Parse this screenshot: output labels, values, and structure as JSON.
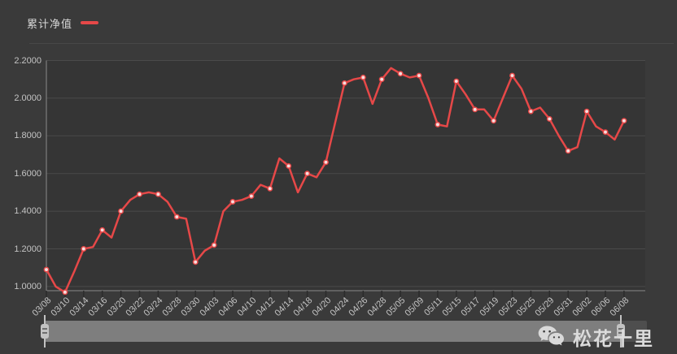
{
  "legend": {
    "label": "累计净值"
  },
  "watermark": {
    "text": "松花十里",
    "icon": "wechat-icon"
  },
  "colors": {
    "background": "#3a3a3a",
    "plot_background": "#353535",
    "grid_line": "#4a4a4a",
    "axis_line": "#8a8a8a",
    "axis_tick": "#2b2b2b",
    "axis_text": "#c4c4c4",
    "series_line": "#e64848",
    "point_fill": "#f6dede",
    "datazoom_selected": "#7e7e7e",
    "datazoom_unselected": "#4e4e4e",
    "datazoom_handle": "#c2c2c2",
    "watermark_text": "#dcdcdc"
  },
  "chart_data": {
    "type": "line",
    "title": "",
    "legend_entries": [
      "累计净值"
    ],
    "legend_position": "top-left",
    "grid": "horizontal-only",
    "xlabel": "",
    "ylabel": "",
    "x_tick_labels": [
      "03/08",
      "03/10",
      "03/14",
      "03/16",
      "03/20",
      "03/22",
      "03/24",
      "03/28",
      "03/30",
      "04/03",
      "04/06",
      "04/10",
      "04/12",
      "04/14",
      "04/18",
      "04/20",
      "04/24",
      "04/26",
      "04/28",
      "05/05",
      "05/09",
      "05/11",
      "05/15",
      "05/17",
      "05/19",
      "05/23",
      "05/25",
      "05/29",
      "05/31",
      "06/02",
      "06/06",
      "06/08"
    ],
    "points_per_tick": 2,
    "y_tick_labels": [
      "1.0000",
      "1.2000",
      "1.4000",
      "1.6000",
      "1.8000",
      "2.0000",
      "2.2000"
    ],
    "ylim": [
      1.0,
      2.2
    ],
    "series": [
      {
        "name": "累计净值",
        "values": [
          1.09,
          1.0,
          0.97,
          1.08,
          1.2,
          1.21,
          1.3,
          1.26,
          1.4,
          1.46,
          1.49,
          1.5,
          1.49,
          1.45,
          1.37,
          1.36,
          1.13,
          1.19,
          1.22,
          1.4,
          1.45,
          1.46,
          1.48,
          1.54,
          1.52,
          1.68,
          1.64,
          1.5,
          1.6,
          1.58,
          1.66,
          1.87,
          2.08,
          2.1,
          2.11,
          1.97,
          2.1,
          2.16,
          2.13,
          2.11,
          2.12,
          2.0,
          1.86,
          1.85,
          2.09,
          2.02,
          1.94,
          1.94,
          1.88,
          2.0,
          2.12,
          2.05,
          1.93,
          1.95,
          1.89,
          1.8,
          1.72,
          1.74,
          1.93,
          1.85,
          1.82,
          1.78,
          1.88
        ]
      }
    ]
  }
}
